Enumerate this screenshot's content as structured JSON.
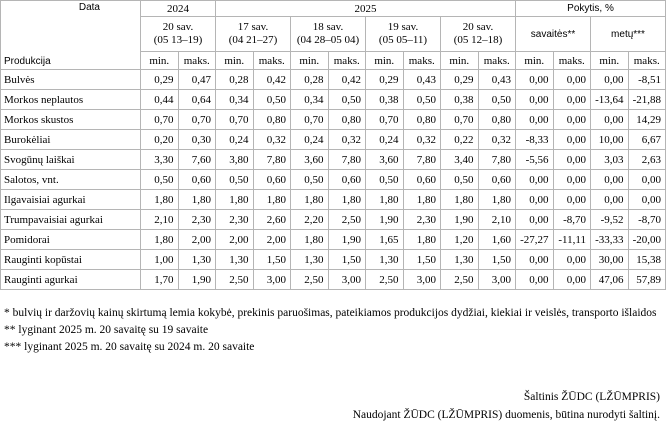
{
  "table": {
    "header": {
      "date_label": "Data",
      "product_label": "Produkcija",
      "years": [
        "2024",
        "2025"
      ],
      "change_label": "Pokytis, %",
      "weeks": [
        {
          "week": "20 sav.",
          "dates": "(05 13–19)"
        },
        {
          "week": "17 sav.",
          "dates": "(04 21–27)"
        },
        {
          "week": "18 sav.",
          "dates": "(04 28–05 04)"
        },
        {
          "week": "19 sav.",
          "dates": "(05 05–11)"
        },
        {
          "week": "20 sav.",
          "dates": "(05 12–18)"
        }
      ],
      "change_cols": [
        "savaitės**",
        "metų***"
      ],
      "min": "min.",
      "max": "maks."
    },
    "rows": [
      {
        "name": "Bulvės",
        "values": [
          "0,29",
          "0,47",
          "0,28",
          "0,42",
          "0,28",
          "0,42",
          "0,29",
          "0,43",
          "0,29",
          "0,43",
          "0,00",
          "0,00",
          "0,00",
          "-8,51"
        ]
      },
      {
        "name": "Morkos neplautos",
        "values": [
          "0,44",
          "0,64",
          "0,34",
          "0,50",
          "0,34",
          "0,50",
          "0,38",
          "0,50",
          "0,38",
          "0,50",
          "0,00",
          "0,00",
          "-13,64",
          "-21,88"
        ]
      },
      {
        "name": "Morkos skustos",
        "values": [
          "0,70",
          "0,70",
          "0,70",
          "0,80",
          "0,70",
          "0,80",
          "0,70",
          "0,80",
          "0,70",
          "0,80",
          "0,00",
          "0,00",
          "0,00",
          "14,29"
        ]
      },
      {
        "name": "Burokėliai",
        "values": [
          "0,20",
          "0,30",
          "0,24",
          "0,32",
          "0,24",
          "0,32",
          "0,24",
          "0,32",
          "0,22",
          "0,32",
          "-8,33",
          "0,00",
          "10,00",
          "6,67"
        ]
      },
      {
        "name": "Svogūnų laiškai",
        "values": [
          "3,30",
          "7,60",
          "3,80",
          "7,80",
          "3,60",
          "7,80",
          "3,60",
          "7,80",
          "3,40",
          "7,80",
          "-5,56",
          "0,00",
          "3,03",
          "2,63"
        ]
      },
      {
        "name": "Salotos, vnt.",
        "values": [
          "0,50",
          "0,60",
          "0,50",
          "0,60",
          "0,50",
          "0,60",
          "0,50",
          "0,60",
          "0,50",
          "0,60",
          "0,00",
          "0,00",
          "0,00",
          "0,00"
        ]
      },
      {
        "name": "Ilgavaisiai agurkai",
        "values": [
          "1,80",
          "1,80",
          "1,80",
          "1,80",
          "1,80",
          "1,80",
          "1,80",
          "1,80",
          "1,80",
          "1,80",
          "0,00",
          "0,00",
          "0,00",
          "0,00"
        ]
      },
      {
        "name": "Trumpavaisiai agurkai",
        "values": [
          "2,10",
          "2,30",
          "2,30",
          "2,60",
          "2,20",
          "2,50",
          "1,90",
          "2,30",
          "1,90",
          "2,10",
          "0,00",
          "-8,70",
          "-9,52",
          "-8,70"
        ]
      },
      {
        "name": "Pomidorai",
        "values": [
          "1,80",
          "2,00",
          "2,00",
          "2,00",
          "1,80",
          "1,90",
          "1,65",
          "1,80",
          "1,20",
          "1,60",
          "-27,27",
          "-11,11",
          "-33,33",
          "-20,00"
        ]
      },
      {
        "name": "Rauginti kopūstai",
        "values": [
          "1,00",
          "1,30",
          "1,30",
          "1,50",
          "1,30",
          "1,50",
          "1,30",
          "1,50",
          "1,30",
          "1,50",
          "0,00",
          "0,00",
          "30,00",
          "15,38"
        ]
      },
      {
        "name": "Rauginti agurkai",
        "values": [
          "1,70",
          "1,90",
          "2,50",
          "3,00",
          "2,50",
          "3,00",
          "2,50",
          "3,00",
          "2,50",
          "3,00",
          "0,00",
          "0,00",
          "47,06",
          "57,89"
        ]
      }
    ]
  },
  "notes": [
    "* bulvių ir daržovių kainų skirtumą lemia kokybė, prekinis paruošimas, pateikiamos produkcijos dydžiai, kiekiai ir veislės, transporto išlaidos",
    "** lyginant 2025 m. 20 savaitę su 19 savaite",
    "*** lyginant 2025 m. 20 savaitę su 2024 m. 20 savaite"
  ],
  "source": "Šaltinis  ŽŪDC (LŽŪMPRIS)",
  "usage": "Naudojant ŽŪDC (LŽŪMPRIS) duomenis, būtina nurodyti šaltinį."
}
